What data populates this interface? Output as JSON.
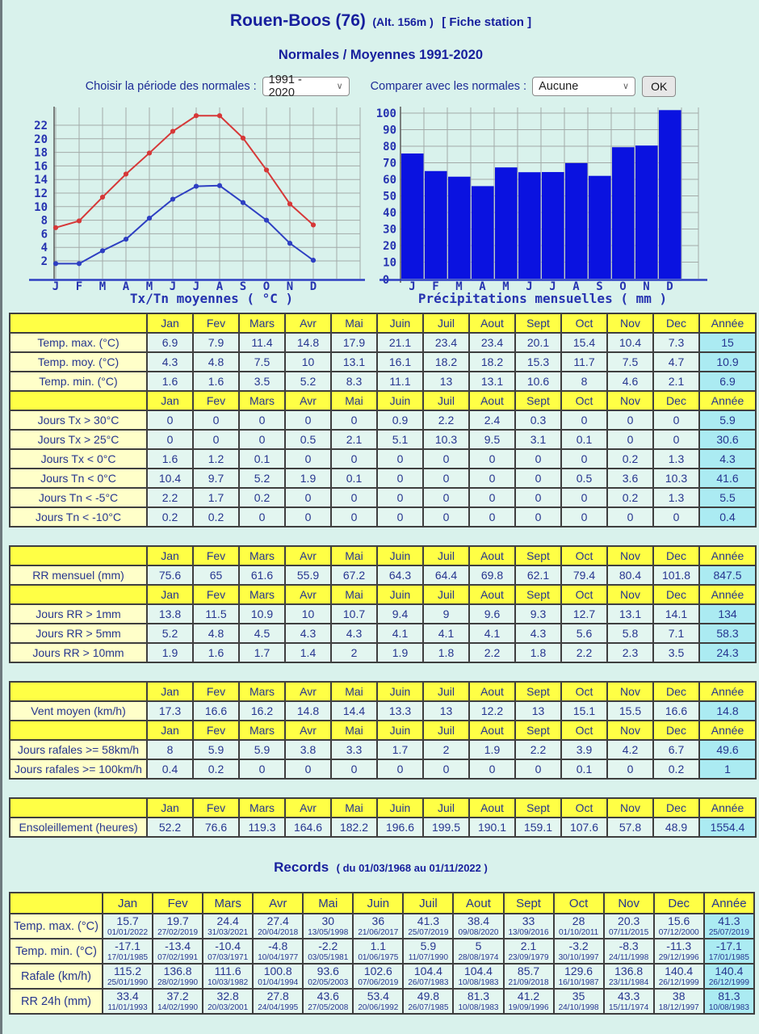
{
  "header": {
    "title": "Rouen-Boos (76)",
    "alt": "(Alt. 156m )",
    "fiche_station": "[ Fiche station ]",
    "subtitle": "Normales / Moyennes 1991-2020"
  },
  "controls": {
    "period_label": "Choisir la période des normales :",
    "period_value": "1991 - 2020",
    "compare_label": "Comparer avec les normales :",
    "compare_value": "Aucune",
    "ok_label": "OK",
    "chevron": "∨"
  },
  "months_header": [
    "Jan",
    "Fev",
    "Mars",
    "Avr",
    "Mai",
    "Juin",
    "Juil",
    "Aout",
    "Sept",
    "Oct",
    "Nov",
    "Dec",
    "Année"
  ],
  "chart_data": [
    {
      "type": "line",
      "title": "Tx/Tn moyennes ( °C )",
      "x": [
        "J",
        "F",
        "M",
        "A",
        "M",
        "J",
        "J",
        "A",
        "S",
        "O",
        "N",
        "D"
      ],
      "series": [
        {
          "name": "Tx moyen",
          "color": "#d63838",
          "values": [
            6.9,
            7.9,
            11.4,
            14.8,
            17.9,
            21.1,
            23.4,
            23.4,
            20.1,
            15.4,
            10.4,
            7.3
          ]
        },
        {
          "name": "Tn moyen",
          "color": "#2e3fc2",
          "values": [
            1.6,
            1.6,
            3.5,
            5.2,
            8.3,
            11.1,
            13,
            13.1,
            10.6,
            8,
            4.6,
            2.1
          ]
        }
      ],
      "yticks": [
        2,
        4,
        6,
        8,
        10,
        12,
        14,
        16,
        18,
        20,
        22
      ],
      "ylim": [
        -1,
        25
      ],
      "grid": true,
      "legend_position": "none"
    },
    {
      "type": "bar",
      "title": "Précipitations mensuelles ( mm )",
      "x": [
        "J",
        "F",
        "M",
        "A",
        "M",
        "J",
        "J",
        "A",
        "S",
        "O",
        "N",
        "D"
      ],
      "values": [
        75.6,
        65,
        61.6,
        55.9,
        67.2,
        64.3,
        64.4,
        69.8,
        62.1,
        79.4,
        80.4,
        101.8
      ],
      "yticks": [
        0,
        10,
        20,
        30,
        40,
        50,
        60,
        70,
        80,
        90,
        100
      ],
      "ylim": [
        0,
        104
      ],
      "bar_color": "#0a12e0",
      "grid": true,
      "legend_position": "none"
    }
  ],
  "normals_tables": [
    {
      "name": "temperatures",
      "blocks": [
        {
          "rows": [
            {
              "label": "Temp. max. (°C)",
              "values": [
                6.9,
                7.9,
                11.4,
                14.8,
                17.9,
                21.1,
                23.4,
                23.4,
                20.1,
                15.4,
                10.4,
                7.3,
                15
              ]
            },
            {
              "label": "Temp. moy. (°C)",
              "values": [
                4.3,
                4.8,
                7.5,
                10,
                13.1,
                16.1,
                18.2,
                18.2,
                15.3,
                11.7,
                7.5,
                4.7,
                10.9
              ]
            },
            {
              "label": "Temp. min. (°C)",
              "values": [
                1.6,
                1.6,
                3.5,
                5.2,
                8.3,
                11.1,
                13,
                13.1,
                10.6,
                8,
                4.6,
                2.1,
                6.9
              ]
            }
          ]
        },
        {
          "rows": [
            {
              "label": "Jours Tx > 30°C",
              "values": [
                0,
                0,
                0,
                0,
                0,
                0.9,
                2.2,
                2.4,
                0.3,
                0,
                0,
                0,
                5.9
              ]
            },
            {
              "label": "Jours Tx > 25°C",
              "values": [
                0,
                0,
                0,
                0.5,
                2.1,
                5.1,
                10.3,
                9.5,
                3.1,
                0.1,
                0,
                0,
                30.6
              ]
            },
            {
              "label": "Jours Tx < 0°C",
              "values": [
                1.6,
                1.2,
                0.1,
                0,
                0,
                0,
                0,
                0,
                0,
                0,
                0.2,
                1.3,
                4.3
              ]
            },
            {
              "label": "Jours Tn < 0°C",
              "values": [
                10.4,
                9.7,
                5.2,
                1.9,
                0.1,
                0,
                0,
                0,
                0,
                0.5,
                3.6,
                10.3,
                41.6
              ]
            },
            {
              "label": "Jours Tn < -5°C",
              "values": [
                2.2,
                1.7,
                0.2,
                0,
                0,
                0,
                0,
                0,
                0,
                0,
                0.2,
                1.3,
                5.5
              ]
            },
            {
              "label": "Jours Tn < -10°C",
              "values": [
                0.2,
                0.2,
                0,
                0,
                0,
                0,
                0,
                0,
                0,
                0,
                0,
                0,
                0.4
              ]
            }
          ]
        }
      ]
    },
    {
      "name": "precipitations",
      "blocks": [
        {
          "rows": [
            {
              "label": "RR mensuel (mm)",
              "values": [
                75.6,
                65,
                61.6,
                55.9,
                67.2,
                64.3,
                64.4,
                69.8,
                62.1,
                79.4,
                80.4,
                101.8,
                847.5
              ]
            }
          ]
        },
        {
          "rows": [
            {
              "label": "Jours RR > 1mm",
              "values": [
                13.8,
                11.5,
                10.9,
                10,
                10.7,
                9.4,
                9,
                9.6,
                9.3,
                12.7,
                13.1,
                14.1,
                134
              ]
            },
            {
              "label": "Jours RR > 5mm",
              "values": [
                5.2,
                4.8,
                4.5,
                4.3,
                4.3,
                4.1,
                4.1,
                4.1,
                4.3,
                5.6,
                5.8,
                7.1,
                58.3
              ]
            },
            {
              "label": "Jours RR > 10mm",
              "values": [
                1.9,
                1.6,
                1.7,
                1.4,
                2,
                1.9,
                1.8,
                2.2,
                1.8,
                2.2,
                2.3,
                3.5,
                24.3
              ]
            }
          ]
        }
      ]
    },
    {
      "name": "vent",
      "blocks": [
        {
          "rows": [
            {
              "label": "Vent moyen (km/h)",
              "values": [
                17.3,
                16.6,
                16.2,
                14.8,
                14.4,
                13.3,
                13,
                12.2,
                13,
                15.1,
                15.5,
                16.6,
                14.8
              ]
            }
          ]
        },
        {
          "rows": [
            {
              "label": "Jours rafales >= 58km/h",
              "values": [
                8,
                5.9,
                5.9,
                3.8,
                3.3,
                1.7,
                2,
                1.9,
                2.2,
                3.9,
                4.2,
                6.7,
                49.6
              ]
            },
            {
              "label": "Jours rafales >= 100km/h",
              "values": [
                0.4,
                0.2,
                0,
                0,
                0,
                0,
                0,
                0,
                0,
                0.1,
                0,
                0.2,
                1
              ]
            }
          ]
        }
      ]
    },
    {
      "name": "ensoleillement",
      "blocks": [
        {
          "rows": [
            {
              "label": "Ensoleillement (heures)",
              "values": [
                52.2,
                76.6,
                119.3,
                164.6,
                182.2,
                196.6,
                199.5,
                190.1,
                159.1,
                107.6,
                57.8,
                48.9,
                1554.4
              ]
            }
          ]
        }
      ]
    }
  ],
  "records": {
    "title": "Records",
    "range": "( du 01/03/1968 au 01/11/2022 )",
    "rows": [
      {
        "label": "Temp. max. (°C)",
        "cells": [
          {
            "v": 15.7,
            "d": "01/01/2022"
          },
          {
            "v": 19.7,
            "d": "27/02/2019"
          },
          {
            "v": 24.4,
            "d": "31/03/2021"
          },
          {
            "v": 27.4,
            "d": "20/04/2018"
          },
          {
            "v": 30,
            "d": "13/05/1998"
          },
          {
            "v": 36,
            "d": "21/06/2017"
          },
          {
            "v": 41.3,
            "d": "25/07/2019"
          },
          {
            "v": 38.4,
            "d": "09/08/2020"
          },
          {
            "v": 33,
            "d": "13/09/2016"
          },
          {
            "v": 28,
            "d": "01/10/2011"
          },
          {
            "v": 20.3,
            "d": "07/11/2015"
          },
          {
            "v": 15.6,
            "d": "07/12/2000"
          },
          {
            "v": 41.3,
            "d": "25/07/2019"
          }
        ]
      },
      {
        "label": "Temp. min. (°C)",
        "cells": [
          {
            "v": -17.1,
            "d": "17/01/1985"
          },
          {
            "v": -13.4,
            "d": "07/02/1991"
          },
          {
            "v": -10.4,
            "d": "07/03/1971"
          },
          {
            "v": -4.8,
            "d": "10/04/1977"
          },
          {
            "v": -2.2,
            "d": "03/05/1981"
          },
          {
            "v": 1.1,
            "d": "01/06/1975"
          },
          {
            "v": 5.9,
            "d": "11/07/1990"
          },
          {
            "v": 5,
            "d": "28/08/1974"
          },
          {
            "v": 2.1,
            "d": "23/09/1979"
          },
          {
            "v": -3.2,
            "d": "30/10/1997"
          },
          {
            "v": -8.3,
            "d": "24/11/1998"
          },
          {
            "v": -11.3,
            "d": "29/12/1996"
          },
          {
            "v": -17.1,
            "d": "17/01/1985"
          }
        ]
      },
      {
        "label": "Rafale (km/h)",
        "cells": [
          {
            "v": 115.2,
            "d": "25/01/1990"
          },
          {
            "v": 136.8,
            "d": "28/02/1990"
          },
          {
            "v": 111.6,
            "d": "10/03/1982"
          },
          {
            "v": 100.8,
            "d": "01/04/1994"
          },
          {
            "v": 93.6,
            "d": "02/05/2003"
          },
          {
            "v": 102.6,
            "d": "07/06/2019"
          },
          {
            "v": 104.4,
            "d": "26/07/1983"
          },
          {
            "v": 104.4,
            "d": "10/08/1983"
          },
          {
            "v": 85.7,
            "d": "21/09/2018"
          },
          {
            "v": 129.6,
            "d": "16/10/1987"
          },
          {
            "v": 136.8,
            "d": "23/11/1984"
          },
          {
            "v": 140.4,
            "d": "26/12/1999"
          },
          {
            "v": 140.4,
            "d": "26/12/1999"
          }
        ]
      },
      {
        "label": "RR 24h (mm)",
        "cells": [
          {
            "v": 33.4,
            "d": "11/01/1993"
          },
          {
            "v": 37.2,
            "d": "14/02/1990"
          },
          {
            "v": 32.8,
            "d": "20/03/2001"
          },
          {
            "v": 27.8,
            "d": "24/04/1995"
          },
          {
            "v": 43.6,
            "d": "27/05/2008"
          },
          {
            "v": 53.4,
            "d": "20/06/1992"
          },
          {
            "v": 49.8,
            "d": "26/07/1985"
          },
          {
            "v": 81.3,
            "d": "10/08/1983"
          },
          {
            "v": 41.2,
            "d": "19/09/1996"
          },
          {
            "v": 35,
            "d": "24/10/1998"
          },
          {
            "v": 43.3,
            "d": "15/11/1974"
          },
          {
            "v": 38,
            "d": "18/12/1997"
          },
          {
            "v": 81.3,
            "d": "10/08/1983"
          }
        ]
      }
    ]
  },
  "colors": {
    "background": "#d9f2ec",
    "header_yellow": "#ffff45",
    "label_yellow": "#ffffc9",
    "cell_green": "#e3f6f0",
    "annee_cyan": "#abebf2",
    "navy_text": "#1d2b96",
    "tx_red": "#d63838",
    "tn_blue": "#2e3fc2",
    "bar_blue": "#0a12e0"
  }
}
